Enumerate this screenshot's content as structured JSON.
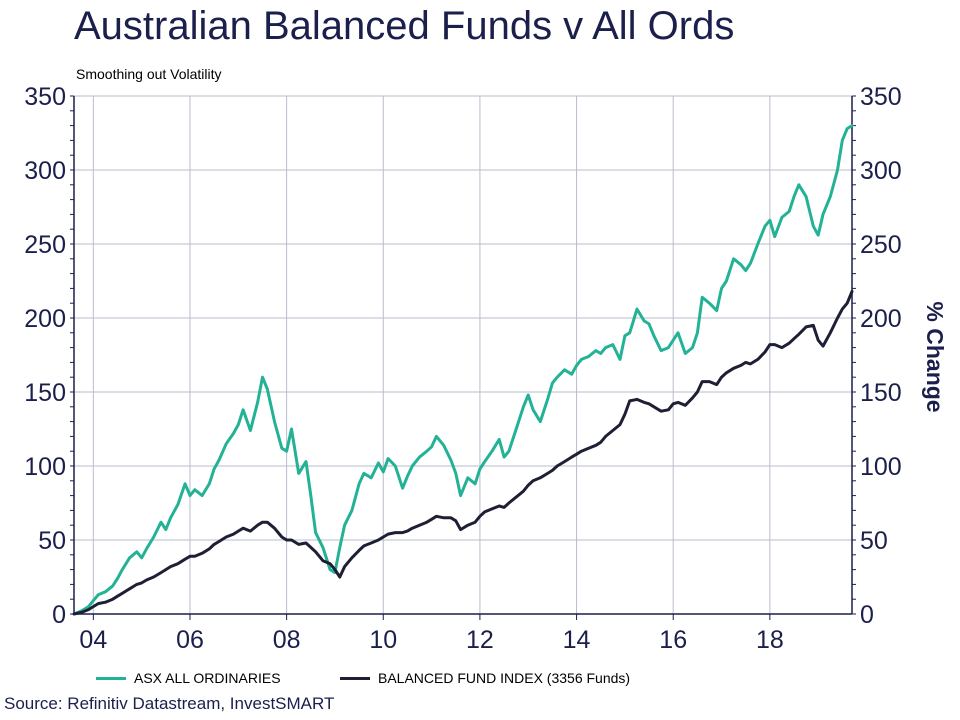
{
  "chart_data": {
    "type": "line",
    "title": "Australian Balanced Funds v All Ords",
    "subtitle": "Smoothing out Volatility",
    "ylabel_right": "% Change",
    "ylim": [
      0,
      350
    ],
    "yticks": [
      "0",
      "50",
      "100",
      "150",
      "200",
      "250",
      "300",
      "350"
    ],
    "xlim": [
      2003.6,
      2019.7
    ],
    "xticks": [
      {
        "value": 2004,
        "label": "04"
      },
      {
        "value": 2006,
        "label": "06"
      },
      {
        "value": 2008,
        "label": "08"
      },
      {
        "value": 2010,
        "label": "10"
      },
      {
        "value": 2012,
        "label": "12"
      },
      {
        "value": 2014,
        "label": "14"
      },
      {
        "value": 2016,
        "label": "16"
      },
      {
        "value": 2018,
        "label": "18"
      }
    ],
    "grid": true,
    "legend_position": "bottom",
    "series": [
      {
        "name": "ASX ALL ORDINARIES",
        "color": "#23b296",
        "x": [
          2003.6,
          2003.75,
          2003.9,
          2004.0,
          2004.1,
          2004.25,
          2004.4,
          2004.5,
          2004.6,
          2004.75,
          2004.9,
          2005.0,
          2005.1,
          2005.25,
          2005.4,
          2005.5,
          2005.6,
          2005.75,
          2005.9,
          2006.0,
          2006.1,
          2006.25,
          2006.4,
          2006.5,
          2006.6,
          2006.75,
          2006.9,
          2007.0,
          2007.1,
          2007.25,
          2007.4,
          2007.5,
          2007.6,
          2007.75,
          2007.9,
          2008.0,
          2008.1,
          2008.25,
          2008.4,
          2008.5,
          2008.6,
          2008.75,
          2008.9,
          2009.0,
          2009.1,
          2009.2,
          2009.35,
          2009.5,
          2009.6,
          2009.75,
          2009.9,
          2010.0,
          2010.1,
          2010.25,
          2010.4,
          2010.5,
          2010.6,
          2010.75,
          2010.9,
          2011.0,
          2011.1,
          2011.25,
          2011.4,
          2011.5,
          2011.6,
          2011.75,
          2011.9,
          2012.0,
          2012.1,
          2012.25,
          2012.4,
          2012.5,
          2012.6,
          2012.75,
          2012.9,
          2013.0,
          2013.1,
          2013.25,
          2013.4,
          2013.5,
          2013.6,
          2013.75,
          2013.9,
          2014.0,
          2014.1,
          2014.25,
          2014.4,
          2014.5,
          2014.6,
          2014.75,
          2014.9,
          2015.0,
          2015.1,
          2015.25,
          2015.4,
          2015.5,
          2015.6,
          2015.75,
          2015.9,
          2016.0,
          2016.1,
          2016.25,
          2016.4,
          2016.5,
          2016.6,
          2016.75,
          2016.9,
          2017.0,
          2017.1,
          2017.25,
          2017.4,
          2017.5,
          2017.6,
          2017.75,
          2017.9,
          2018.0,
          2018.1,
          2018.25,
          2018.4,
          2018.5,
          2018.6,
          2018.75,
          2018.9,
          2019.0,
          2019.1,
          2019.25,
          2019.4,
          2019.5,
          2019.6,
          2019.7
        ],
        "values": [
          0,
          2,
          5,
          9,
          13,
          15,
          19,
          24,
          30,
          38,
          42,
          38,
          44,
          52,
          62,
          57,
          65,
          74,
          88,
          80,
          84,
          80,
          88,
          98,
          104,
          115,
          122,
          128,
          138,
          124,
          143,
          160,
          152,
          130,
          112,
          110,
          125,
          95,
          103,
          80,
          55,
          45,
          30,
          28,
          45,
          60,
          70,
          88,
          95,
          92,
          102,
          96,
          105,
          100,
          85,
          93,
          100,
          106,
          110,
          113,
          120,
          114,
          104,
          95,
          80,
          92,
          88,
          98,
          103,
          110,
          118,
          106,
          110,
          125,
          140,
          148,
          138,
          130,
          145,
          156,
          160,
          165,
          162,
          168,
          172,
          174,
          178,
          176,
          180,
          182,
          172,
          188,
          190,
          206,
          198,
          196,
          188,
          178,
          180,
          185,
          190,
          176,
          180,
          190,
          214,
          210,
          205,
          220,
          225,
          240,
          236,
          232,
          237,
          250,
          262,
          266,
          255,
          268,
          272,
          282,
          290,
          282,
          262,
          256,
          270,
          282,
          300,
          320,
          328,
          330
        ]
      },
      {
        "name": "BALANCED FUND INDEX (3356 Funds)",
        "color": "#1e1f35",
        "x": [
          2003.6,
          2003.75,
          2003.9,
          2004.0,
          2004.1,
          2004.25,
          2004.4,
          2004.5,
          2004.6,
          2004.75,
          2004.9,
          2005.0,
          2005.1,
          2005.25,
          2005.4,
          2005.5,
          2005.6,
          2005.75,
          2005.9,
          2006.0,
          2006.1,
          2006.25,
          2006.4,
          2006.5,
          2006.6,
          2006.75,
          2006.9,
          2007.0,
          2007.1,
          2007.25,
          2007.4,
          2007.5,
          2007.6,
          2007.75,
          2007.9,
          2008.0,
          2008.1,
          2008.25,
          2008.4,
          2008.5,
          2008.6,
          2008.75,
          2008.9,
          2009.0,
          2009.1,
          2009.2,
          2009.35,
          2009.5,
          2009.6,
          2009.75,
          2009.9,
          2010.0,
          2010.1,
          2010.25,
          2010.4,
          2010.5,
          2010.6,
          2010.75,
          2010.9,
          2011.0,
          2011.1,
          2011.25,
          2011.4,
          2011.5,
          2011.6,
          2011.75,
          2011.9,
          2012.0,
          2012.1,
          2012.25,
          2012.4,
          2012.5,
          2012.6,
          2012.75,
          2012.9,
          2013.0,
          2013.1,
          2013.25,
          2013.4,
          2013.5,
          2013.6,
          2013.75,
          2013.9,
          2014.0,
          2014.1,
          2014.25,
          2014.4,
          2014.5,
          2014.6,
          2014.75,
          2014.9,
          2015.0,
          2015.1,
          2015.25,
          2015.4,
          2015.5,
          2015.6,
          2015.75,
          2015.9,
          2016.0,
          2016.1,
          2016.25,
          2016.4,
          2016.5,
          2016.6,
          2016.75,
          2016.9,
          2017.0,
          2017.1,
          2017.25,
          2017.4,
          2017.5,
          2017.6,
          2017.75,
          2017.9,
          2018.0,
          2018.1,
          2018.25,
          2018.4,
          2018.5,
          2018.6,
          2018.75,
          2018.9,
          2019.0,
          2019.1,
          2019.25,
          2019.4,
          2019.5,
          2019.6,
          2019.7
        ],
        "values": [
          0,
          1,
          3,
          5,
          7,
          8,
          10,
          12,
          14,
          17,
          20,
          21,
          23,
          25,
          28,
          30,
          32,
          34,
          37,
          39,
          39,
          41,
          44,
          47,
          49,
          52,
          54,
          56,
          58,
          56,
          60,
          62,
          62,
          58,
          52,
          50,
          50,
          47,
          48,
          45,
          42,
          36,
          34,
          30,
          25,
          32,
          38,
          43,
          46,
          48,
          50,
          52,
          54,
          55,
          55,
          56,
          58,
          60,
          62,
          64,
          66,
          65,
          65,
          63,
          57,
          60,
          62,
          66,
          69,
          71,
          73,
          72,
          75,
          79,
          83,
          87,
          90,
          92,
          95,
          97,
          100,
          103,
          106,
          108,
          110,
          112,
          114,
          116,
          120,
          124,
          128,
          135,
          144,
          145,
          143,
          142,
          140,
          137,
          138,
          142,
          143,
          141,
          146,
          150,
          157,
          157,
          155,
          160,
          163,
          166,
          168,
          170,
          169,
          172,
          177,
          182,
          182,
          180,
          183,
          186,
          189,
          194,
          195,
          185,
          181,
          190,
          200,
          206,
          210,
          218
        ]
      }
    ]
  },
  "legend": {
    "items": [
      {
        "label": "ASX ALL ORDINARIES"
      },
      {
        "label": "BALANCED FUND INDEX (3356 Funds)"
      }
    ]
  },
  "source": "Source: Refinitiv Datastream, InvestSMART"
}
